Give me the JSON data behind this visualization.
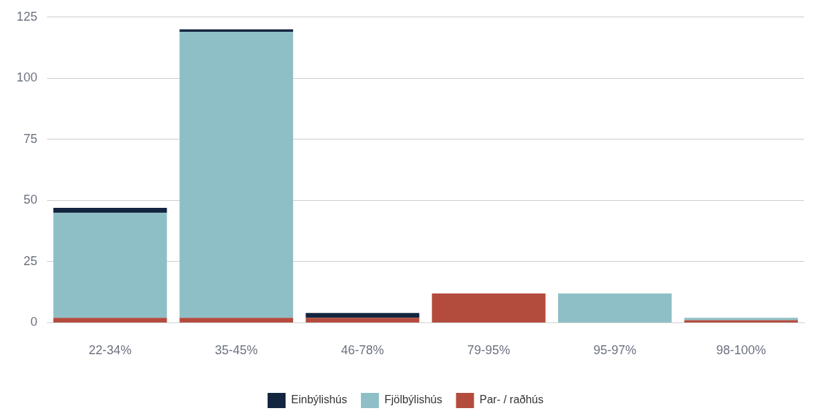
{
  "chart_data": {
    "type": "bar",
    "stacked": true,
    "categories": [
      "22-34%",
      "35-45%",
      "46-78%",
      "79-95%",
      "95-97%",
      "98-100%"
    ],
    "series": [
      {
        "name": "Par- / raðhús",
        "color": "#b34c3d",
        "values": [
          2,
          2,
          2,
          12,
          0,
          1
        ]
      },
      {
        "name": "Fjölbýlishús",
        "color": "#8ebfc6",
        "values": [
          43,
          117,
          0,
          0,
          12,
          1
        ]
      },
      {
        "name": "Einbýlishús",
        "color": "#14253f",
        "values": [
          2,
          1,
          2,
          0,
          0,
          0
        ]
      }
    ],
    "ylim": [
      0,
      125
    ],
    "yticks": [
      0,
      25,
      50,
      75,
      100,
      125
    ],
    "grid": "y",
    "legend": "bottom"
  }
}
